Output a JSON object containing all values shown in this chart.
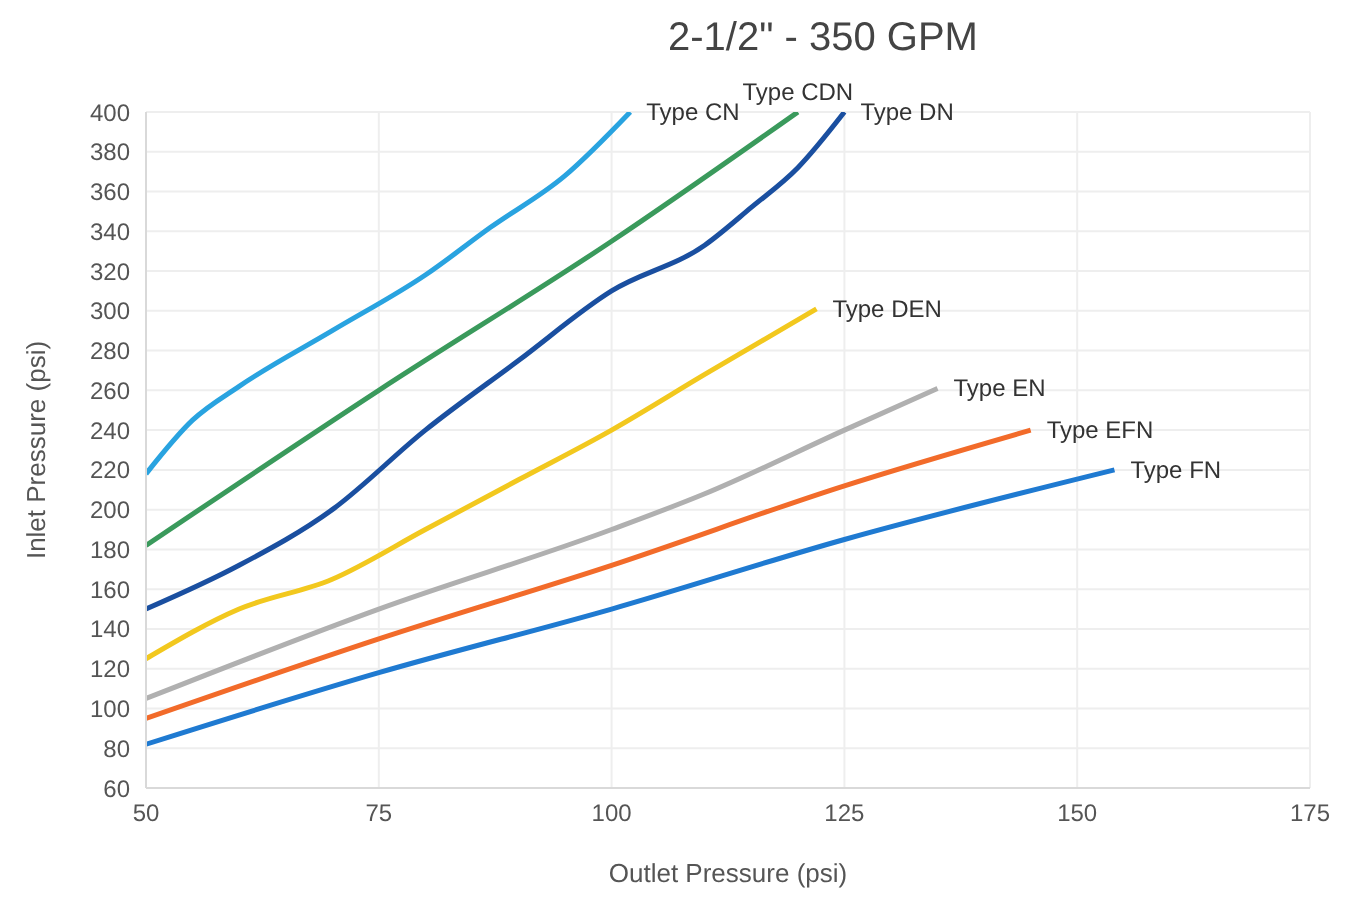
{
  "chart_data": {
    "type": "line",
    "title": "2-1/2\" - 350 GPM",
    "xlabel": "Outlet Pressure (psi)",
    "ylabel": "Inlet Pressure (psi)",
    "xlim": [
      50,
      175
    ],
    "xticks": [
      50,
      75,
      100,
      125,
      150,
      175
    ],
    "ylim": [
      60,
      400
    ],
    "yticks": [
      60,
      80,
      100,
      120,
      140,
      160,
      180,
      200,
      220,
      240,
      260,
      280,
      300,
      320,
      340,
      360,
      380,
      400
    ],
    "grid": true,
    "legend": false,
    "marker": "none",
    "line_style": "solid",
    "series": [
      {
        "name": "Type CN",
        "color": "#29a3e0",
        "x": [
          50,
          55,
          60,
          70,
          80,
          87,
          95,
          102
        ],
        "values": [
          218,
          245,
          262,
          290,
          318,
          342,
          368,
          400
        ]
      },
      {
        "name": "Type CDN",
        "color": "#3a9a5c",
        "x": [
          50,
          75,
          100,
          120
        ],
        "values": [
          182,
          260,
          335,
          400
        ]
      },
      {
        "name": "Type DN",
        "color": "#1a4fa0",
        "x": [
          50,
          60,
          70,
          80,
          90,
          100,
          110,
          115,
          120,
          125
        ],
        "values": [
          150,
          172,
          200,
          240,
          275,
          310,
          333,
          352,
          372,
          400
        ]
      },
      {
        "name": "Type DEN",
        "color": "#f2c81e",
        "x": [
          50,
          60,
          70,
          80,
          90,
          100,
          110,
          122
        ],
        "values": [
          125,
          150,
          165,
          190,
          215,
          240,
          268,
          301
        ]
      },
      {
        "name": "Type EN",
        "color": "#b0b0b0",
        "x": [
          50,
          75,
          100,
          110,
          125,
          135
        ],
        "values": [
          105,
          150,
          190,
          208,
          240,
          261
        ]
      },
      {
        "name": "Type EFN",
        "color": "#f26b2a",
        "x": [
          50,
          75,
          100,
          125,
          145
        ],
        "values": [
          95,
          135,
          172,
          212,
          240
        ]
      },
      {
        "name": "Type FN",
        "color": "#1f7ad1",
        "x": [
          50,
          75,
          100,
          125,
          154
        ],
        "values": [
          82,
          118,
          150,
          185,
          220
        ]
      }
    ]
  }
}
